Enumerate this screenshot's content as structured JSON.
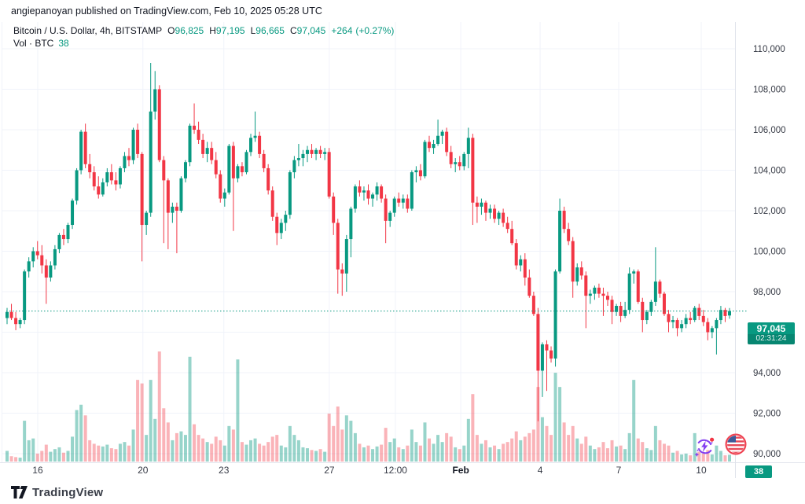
{
  "header": {
    "published_line": "angiepanoyan published on TradingView.com, Feb 10, 2025 05:28 UTC"
  },
  "legend": {
    "symbol_line": "Bitcoin / U.S. Dollar, 4h, BITSTAMP",
    "ohlc": [
      {
        "k": "O",
        "v": "96,825"
      },
      {
        "k": "H",
        "v": "97,195"
      },
      {
        "k": "L",
        "v": "96,665"
      },
      {
        "k": "C",
        "v": "97,045"
      }
    ],
    "change": "+264",
    "change_pct": "(+0.27%)",
    "volume_label": "Vol · BTC",
    "volume_value": "38"
  },
  "last_price": {
    "value": "97,045",
    "countdown": "02:31:24",
    "price": 97045
  },
  "volume_badge": "38",
  "footer": {
    "logo_text": "TradingView"
  },
  "colors": {
    "up": "#089981",
    "down": "#F23645",
    "vol_up": "rgba(8,153,129,0.42)",
    "vol_down": "rgba(242,54,69,0.38)",
    "grid": "#f0f3fa",
    "border": "#e0e3eb",
    "axis_text": "#363a45",
    "dark_text": "#131722",
    "accent": "#089981"
  },
  "chart_data": {
    "type": "candlestick+volume",
    "symbol": "BTC/USD",
    "exchange": "BITSTAMP",
    "interval": "4h",
    "grid": true,
    "ylim": [
      89500,
      110500
    ],
    "last_close": 97045,
    "price_axis": [
      {
        "p": 110000,
        "label": "110,000"
      },
      {
        "p": 108000,
        "label": "108,000"
      },
      {
        "p": 106000,
        "label": "106,000"
      },
      {
        "p": 104000,
        "label": "104,000"
      },
      {
        "p": 102000,
        "label": "102,000"
      },
      {
        "p": 100000,
        "label": "100,000"
      },
      {
        "p": 98000,
        "label": "98,000"
      },
      {
        "p": 96000,
        "label": "96,000"
      },
      {
        "p": 94000,
        "label": "94,000"
      },
      {
        "p": 92000,
        "label": "92,000"
      },
      {
        "p": 90000,
        "label": "90,000"
      }
    ],
    "time_axis": [
      {
        "label": "16",
        "pos": 0.0424,
        "bold": false
      },
      {
        "label": "20",
        "pos": 0.188,
        "bold": false
      },
      {
        "label": "23",
        "pos": 0.3,
        "bold": false
      },
      {
        "label": "27",
        "pos": 0.446,
        "bold": false
      },
      {
        "label": "12:00",
        "pos": 0.5375,
        "bold": false
      },
      {
        "label": "Feb",
        "pos": 0.628,
        "bold": true
      },
      {
        "label": "4",
        "pos": 0.7378,
        "bold": false
      },
      {
        "label": "7",
        "pos": 0.8466,
        "bold": false
      },
      {
        "label": "10",
        "pos": 0.9608,
        "bold": false
      }
    ],
    "candles_format": [
      "open",
      "high",
      "low",
      "close",
      "volume_btc"
    ],
    "candles": [
      [
        96700,
        97200,
        96400,
        97000,
        60
      ],
      [
        97000,
        97400,
        96600,
        96700,
        30
      ],
      [
        96700,
        97000,
        96100,
        96400,
        25
      ],
      [
        96400,
        96700,
        96200,
        96600,
        22
      ],
      [
        96600,
        99100,
        96400,
        99000,
        230
      ],
      [
        99000,
        99700,
        98700,
        99500,
        120
      ],
      [
        99500,
        100200,
        99200,
        100000,
        130
      ],
      [
        100000,
        100500,
        99600,
        99800,
        45
      ],
      [
        99800,
        100300,
        98900,
        99300,
        60
      ],
      [
        99300,
        99600,
        97400,
        98700,
        95
      ],
      [
        98700,
        99500,
        98500,
        99300,
        55
      ],
      [
        99300,
        100300,
        99100,
        100100,
        70
      ],
      [
        100100,
        100900,
        99900,
        100800,
        80
      ],
      [
        100800,
        101100,
        100300,
        100600,
        50
      ],
      [
        100600,
        101400,
        100400,
        101300,
        60
      ],
      [
        101300,
        102600,
        101100,
        102500,
        140
      ],
      [
        102500,
        104100,
        102300,
        104000,
        290
      ],
      [
        104000,
        106000,
        103800,
        105900,
        320
      ],
      [
        105900,
        106300,
        104100,
        104300,
        260
      ],
      [
        104300,
        104800,
        103600,
        103900,
        120
      ],
      [
        103900,
        104200,
        103000,
        103200,
        100
      ],
      [
        103200,
        103700,
        102600,
        102800,
        90
      ],
      [
        102800,
        103600,
        102700,
        103400,
        85
      ],
      [
        103400,
        104100,
        103200,
        103900,
        95
      ],
      [
        103900,
        104300,
        103300,
        103500,
        75
      ],
      [
        103500,
        103900,
        103000,
        103300,
        70
      ],
      [
        103300,
        104200,
        103100,
        104100,
        100
      ],
      [
        104100,
        104900,
        103900,
        104700,
        110
      ],
      [
        104700,
        105100,
        104200,
        104500,
        90
      ],
      [
        104500,
        106100,
        104300,
        106000,
        180
      ],
      [
        106000,
        106300,
        104600,
        104800,
        460
      ],
      [
        104800,
        104900,
        99500,
        101300,
        440
      ],
      [
        101300,
        102000,
        100800,
        101900,
        150
      ],
      [
        101900,
        109300,
        101700,
        106900,
        460
      ],
      [
        106900,
        108900,
        106500,
        108000,
        240
      ],
      [
        108000,
        108200,
        104400,
        104500,
        620
      ],
      [
        104500,
        104700,
        100400,
        103500,
        300
      ],
      [
        103500,
        103600,
        100100,
        101900,
        220
      ],
      [
        101900,
        102400,
        101400,
        102200,
        120
      ],
      [
        102200,
        102400,
        99900,
        102000,
        160
      ],
      [
        102000,
        103700,
        101900,
        103600,
        170
      ],
      [
        103600,
        104500,
        103400,
        104400,
        150
      ],
      [
        104400,
        106300,
        104200,
        106200,
        590
      ],
      [
        106200,
        107300,
        105800,
        106000,
        210
      ],
      [
        106000,
        106400,
        105300,
        105500,
        150
      ],
      [
        105500,
        105800,
        104600,
        104800,
        130
      ],
      [
        104800,
        105400,
        104400,
        105100,
        110
      ],
      [
        105100,
        105400,
        104300,
        104500,
        100
      ],
      [
        104500,
        104900,
        103600,
        103800,
        140
      ],
      [
        103800,
        104000,
        102400,
        102600,
        120
      ],
      [
        102600,
        103100,
        102200,
        102900,
        90
      ],
      [
        102900,
        105300,
        102800,
        105200,
        200
      ],
      [
        105200,
        105400,
        101000,
        103600,
        180
      ],
      [
        103600,
        104300,
        103400,
        104200,
        575
      ],
      [
        104200,
        104400,
        103700,
        103900,
        110
      ],
      [
        103900,
        105000,
        103800,
        104900,
        95
      ],
      [
        104900,
        105800,
        104700,
        105600,
        120
      ],
      [
        105600,
        106900,
        105400,
        105700,
        130
      ],
      [
        105700,
        105900,
        104600,
        104800,
        100
      ],
      [
        104800,
        105000,
        103900,
        104100,
        90
      ],
      [
        104100,
        104300,
        102800,
        103000,
        110
      ],
      [
        103000,
        103200,
        101500,
        101700,
        140
      ],
      [
        101700,
        101900,
        100300,
        100900,
        150
      ],
      [
        100900,
        101600,
        100600,
        101400,
        90
      ],
      [
        101400,
        102000,
        101000,
        101800,
        80
      ],
      [
        101800,
        104000,
        101600,
        103900,
        200
      ],
      [
        103900,
        104700,
        103600,
        104500,
        150
      ],
      [
        104500,
        105300,
        104200,
        104600,
        120
      ],
      [
        104600,
        105000,
        104200,
        104800,
        80
      ],
      [
        104800,
        105200,
        104400,
        105000,
        75
      ],
      [
        105000,
        105300,
        104600,
        104800,
        65
      ],
      [
        104800,
        105100,
        104500,
        105000,
        60
      ],
      [
        105000,
        105200,
        104600,
        104800,
        70
      ],
      [
        104800,
        105100,
        104500,
        104900,
        55
      ],
      [
        104900,
        105100,
        102600,
        102700,
        270
      ],
      [
        102700,
        102900,
        100800,
        101400,
        200
      ],
      [
        101400,
        101600,
        97900,
        99100,
        310
      ],
      [
        99100,
        99400,
        97800,
        98900,
        180
      ],
      [
        98900,
        100800,
        98000,
        100600,
        260
      ],
      [
        100600,
        102200,
        99700,
        102100,
        230
      ],
      [
        102100,
        103300,
        101900,
        103200,
        160
      ],
      [
        103200,
        103500,
        102700,
        102900,
        100
      ],
      [
        102900,
        103200,
        102500,
        103000,
        80
      ],
      [
        103000,
        103300,
        102300,
        102600,
        90
      ],
      [
        102600,
        102900,
        102200,
        102800,
        70
      ],
      [
        102800,
        103400,
        102500,
        103200,
        85
      ],
      [
        103200,
        103300,
        102400,
        102600,
        95
      ],
      [
        102600,
        102800,
        100400,
        101500,
        190
      ],
      [
        101500,
        102000,
        101200,
        101900,
        110
      ],
      [
        101900,
        102700,
        101700,
        102600,
        130
      ],
      [
        102600,
        102900,
        102200,
        102400,
        80
      ],
      [
        102400,
        102800,
        102100,
        102600,
        70
      ],
      [
        102600,
        102800,
        101900,
        102100,
        90
      ],
      [
        102100,
        104000,
        102000,
        103900,
        180
      ],
      [
        103900,
        104200,
        103400,
        104000,
        110
      ],
      [
        104000,
        104300,
        103500,
        103700,
        90
      ],
      [
        103700,
        105500,
        103600,
        105400,
        220
      ],
      [
        105400,
        105700,
        104900,
        105100,
        130
      ],
      [
        105100,
        105500,
        104800,
        105300,
        100
      ],
      [
        105300,
        106500,
        105200,
        105700,
        150
      ],
      [
        105700,
        106000,
        105300,
        105900,
        110
      ],
      [
        105900,
        106100,
        104700,
        104900,
        160
      ],
      [
        104900,
        105200,
        104100,
        104300,
        140
      ],
      [
        104300,
        104600,
        103900,
        104400,
        80
      ],
      [
        104400,
        104700,
        104000,
        104200,
        70
      ],
      [
        104200,
        104900,
        104000,
        104800,
        90
      ],
      [
        104800,
        106100,
        104100,
        105600,
        240
      ],
      [
        105600,
        105800,
        101300,
        102400,
        380
      ],
      [
        102400,
        102700,
        101400,
        102200,
        150
      ],
      [
        102200,
        102600,
        101800,
        102400,
        100
      ],
      [
        102400,
        102500,
        101500,
        101900,
        120
      ],
      [
        101900,
        102300,
        101600,
        102100,
        80
      ],
      [
        102100,
        102300,
        101400,
        101600,
        90
      ],
      [
        101600,
        102000,
        101300,
        101900,
        70
      ],
      [
        101900,
        102100,
        101200,
        101400,
        100
      ],
      [
        101400,
        101700,
        100900,
        101100,
        110
      ],
      [
        101100,
        101500,
        100300,
        100400,
        130
      ],
      [
        100400,
        100600,
        99100,
        99300,
        170
      ],
      [
        99300,
        99800,
        99000,
        99600,
        120
      ],
      [
        99600,
        99900,
        98300,
        98700,
        140
      ],
      [
        98700,
        99100,
        97700,
        97800,
        160
      ],
      [
        97800,
        98000,
        96800,
        96900,
        180
      ],
      [
        96900,
        97200,
        91600,
        94100,
        420
      ],
      [
        94100,
        95500,
        92800,
        95400,
        250
      ],
      [
        95400,
        95600,
        93100,
        95100,
        200
      ],
      [
        95100,
        95300,
        94500,
        94700,
        150
      ],
      [
        94700,
        99100,
        94300,
        99000,
        500
      ],
      [
        99000,
        102600,
        98900,
        102000,
        420
      ],
      [
        102000,
        102200,
        100900,
        101100,
        220
      ],
      [
        101100,
        101400,
        100300,
        100500,
        150
      ],
      [
        100500,
        100700,
        97700,
        98500,
        200
      ],
      [
        98500,
        99400,
        98300,
        99200,
        130
      ],
      [
        99200,
        99500,
        98600,
        98800,
        100
      ],
      [
        98800,
        99000,
        96200,
        97800,
        140
      ],
      [
        97800,
        98100,
        97400,
        97900,
        90
      ],
      [
        97900,
        98300,
        97600,
        98200,
        70
      ],
      [
        98200,
        98400,
        97700,
        97900,
        80
      ],
      [
        97900,
        98200,
        96800,
        97800,
        110
      ],
      [
        97800,
        98000,
        97300,
        97600,
        75
      ],
      [
        97600,
        97800,
        96400,
        97000,
        120
      ],
      [
        97000,
        97400,
        96800,
        97300,
        85
      ],
      [
        97300,
        97500,
        96500,
        96800,
        90
      ],
      [
        96800,
        97500,
        96700,
        97100,
        70
      ],
      [
        97100,
        99200,
        96900,
        98900,
        160
      ],
      [
        98900,
        99100,
        98400,
        99000,
        460
      ],
      [
        99000,
        99100,
        97400,
        97500,
        130
      ],
      [
        97500,
        97700,
        96000,
        96600,
        110
      ],
      [
        96600,
        97100,
        96400,
        97000,
        75
      ],
      [
        97000,
        97600,
        96800,
        97500,
        65
      ],
      [
        97500,
        100200,
        97300,
        98500,
        200
      ],
      [
        98500,
        98600,
        97700,
        97900,
        120
      ],
      [
        97900,
        98000,
        96800,
        96900,
        100
      ],
      [
        96900,
        97100,
        96000,
        96500,
        90
      ],
      [
        96500,
        96800,
        96200,
        96600,
        50
      ],
      [
        96600,
        96700,
        95800,
        96200,
        60
      ],
      [
        96200,
        96600,
        96000,
        96400,
        40
      ],
      [
        96400,
        96900,
        96200,
        96700,
        45
      ],
      [
        96700,
        97000,
        96400,
        96600,
        35
      ],
      [
        96600,
        97300,
        96500,
        97200,
        160
      ],
      [
        97200,
        97400,
        96600,
        96800,
        55
      ],
      [
        96800,
        97100,
        96300,
        96500,
        45
      ],
      [
        96500,
        96700,
        95600,
        96000,
        65
      ],
      [
        96000,
        96300,
        95700,
        96200,
        40
      ],
      [
        96200,
        96700,
        94900,
        96600,
        90
      ],
      [
        96600,
        97300,
        96400,
        97100,
        60
      ],
      [
        97100,
        97200,
        96500,
        96800,
        35
      ],
      [
        96825,
        97195,
        96665,
        97045,
        38
      ]
    ]
  }
}
